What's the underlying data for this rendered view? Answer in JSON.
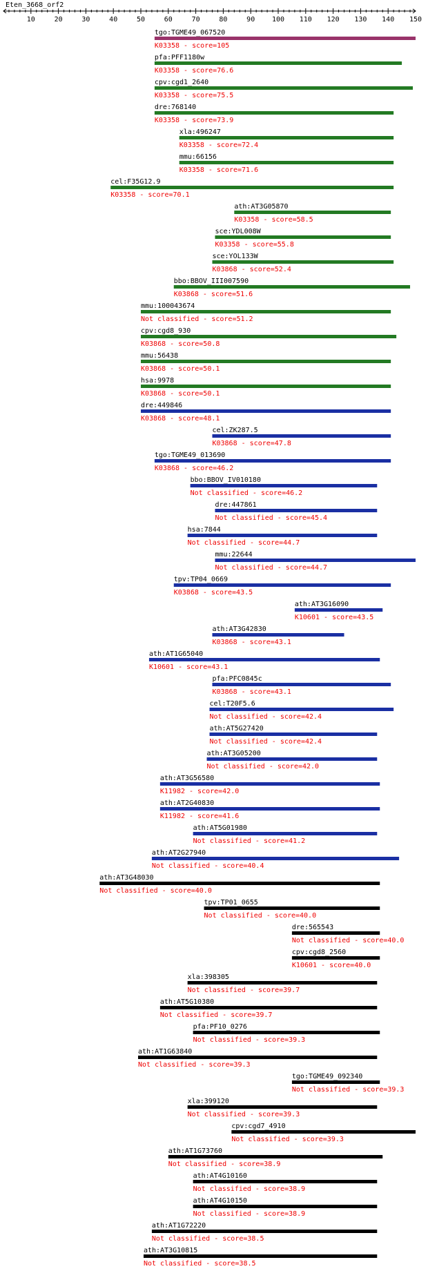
{
  "title": "Eten_3668_orf2",
  "axis": {
    "min": 0,
    "max": 150,
    "ticks": [
      10,
      20,
      30,
      40,
      50,
      60,
      70,
      80,
      90,
      100,
      110,
      120,
      130,
      140,
      150
    ]
  },
  "colors": {
    "magenta": "#99336a",
    "green": "#237a23",
    "blue": "#1a2fa3",
    "black": "#000000",
    "score_text": "#ee0000",
    "name_text": "#000000"
  },
  "hits": [
    {
      "name": "tgo:TGME49_067520",
      "annotation": "K03358 - score=105",
      "start": 55,
      "end": 150,
      "color": "magenta"
    },
    {
      "name": "pfa:PFF1180w",
      "annotation": "K03358 - score=76.6",
      "start": 55,
      "end": 145,
      "color": "green"
    },
    {
      "name": "cpv:cgd1_2640",
      "annotation": "K03358 - score=75.5",
      "start": 55,
      "end": 149,
      "color": "green"
    },
    {
      "name": "dre:768140",
      "annotation": "K03358 - score=73.9",
      "start": 55,
      "end": 142,
      "color": "green"
    },
    {
      "name": "xla:496247",
      "annotation": "K03358 - score=72.4",
      "start": 64,
      "end": 142,
      "color": "green"
    },
    {
      "name": "mmu:66156",
      "annotation": "K03358 - score=71.6",
      "start": 64,
      "end": 142,
      "color": "green"
    },
    {
      "name": "cel:F35G12.9",
      "annotation": "K03358 - score=70.1",
      "start": 39,
      "end": 142,
      "color": "green"
    },
    {
      "name": "ath:AT3G05870",
      "annotation": "K03358 - score=58.5",
      "start": 84,
      "end": 141,
      "color": "green"
    },
    {
      "name": "sce:YDL008W",
      "annotation": "K03358 - score=55.8",
      "start": 77,
      "end": 141,
      "color": "green"
    },
    {
      "name": "sce:YOL133W",
      "annotation": "K03868 - score=52.4",
      "start": 76,
      "end": 142,
      "color": "green"
    },
    {
      "name": "bbo:BBOV_III007590",
      "annotation": "K03868 - score=51.6",
      "start": 62,
      "end": 148,
      "color": "green"
    },
    {
      "name": "mmu:100043674",
      "annotation": "Not classified - score=51.2",
      "start": 50,
      "end": 141,
      "color": "green"
    },
    {
      "name": "cpv:cgd8_930",
      "annotation": "K03868 - score=50.8",
      "start": 50,
      "end": 143,
      "color": "green"
    },
    {
      "name": "mmu:56438",
      "annotation": "K03868 - score=50.1",
      "start": 50,
      "end": 141,
      "color": "green"
    },
    {
      "name": "hsa:9978",
      "annotation": "K03868 - score=50.1",
      "start": 50,
      "end": 141,
      "color": "green"
    },
    {
      "name": "dre:449846",
      "annotation": "K03868 - score=48.1",
      "start": 50,
      "end": 141,
      "color": "blue"
    },
    {
      "name": "cel:ZK287.5",
      "annotation": "K03868 - score=47.8",
      "start": 76,
      "end": 141,
      "color": "blue"
    },
    {
      "name": "tgo:TGME49_013690",
      "annotation": "K03868 - score=46.2",
      "start": 55,
      "end": 141,
      "color": "blue"
    },
    {
      "name": "bbo:BBOV_IV010180",
      "annotation": "Not classified - score=46.2",
      "start": 68,
      "end": 136,
      "color": "blue"
    },
    {
      "name": "dre:447861",
      "annotation": "Not classified - score=45.4",
      "start": 77,
      "end": 136,
      "color": "blue"
    },
    {
      "name": "hsa:7844",
      "annotation": "Not classified - score=44.7",
      "start": 67,
      "end": 136,
      "color": "blue"
    },
    {
      "name": "mmu:22644",
      "annotation": "Not classified - score=44.7",
      "start": 77,
      "end": 150,
      "color": "blue"
    },
    {
      "name": "tpv:TP04_0669",
      "annotation": "K03868 - score=43.5",
      "start": 62,
      "end": 141,
      "color": "blue"
    },
    {
      "name": "ath:AT3G16090",
      "annotation": "K10601 - score=43.5",
      "start": 106,
      "end": 138,
      "color": "blue"
    },
    {
      "name": "ath:AT3G42830",
      "annotation": "K03868 - score=43.1",
      "start": 76,
      "end": 124,
      "color": "blue"
    },
    {
      "name": "ath:AT1G65040",
      "annotation": "K10601 - score=43.1",
      "start": 53,
      "end": 137,
      "color": "blue"
    },
    {
      "name": "pfa:PFC0845c",
      "annotation": "K03868 - score=43.1",
      "start": 76,
      "end": 141,
      "color": "blue"
    },
    {
      "name": "cel:T20F5.6",
      "annotation": "Not classified - score=42.4",
      "start": 75,
      "end": 142,
      "color": "blue"
    },
    {
      "name": "ath:AT5G27420",
      "annotation": "Not classified - score=42.4",
      "start": 75,
      "end": 136,
      "color": "blue"
    },
    {
      "name": "ath:AT3G05200",
      "annotation": "Not classified - score=42.0",
      "start": 74,
      "end": 136,
      "color": "blue"
    },
    {
      "name": "ath:AT3G56580",
      "annotation": "K11982 - score=42.0",
      "start": 57,
      "end": 137,
      "color": "blue"
    },
    {
      "name": "ath:AT2G40830",
      "annotation": "K11982 - score=41.6",
      "start": 57,
      "end": 137,
      "color": "blue"
    },
    {
      "name": "ath:AT5G01980",
      "annotation": "Not classified - score=41.2",
      "start": 69,
      "end": 136,
      "color": "blue"
    },
    {
      "name": "ath:AT2G27940",
      "annotation": "Not classified - score=40.4",
      "start": 54,
      "end": 144,
      "color": "blue"
    },
    {
      "name": "ath:AT3G48030",
      "annotation": "Not classified - score=40.0",
      "start": 35,
      "end": 137,
      "color": "black"
    },
    {
      "name": "tpv:TP01_0655",
      "annotation": "Not classified - score=40.0",
      "start": 73,
      "end": 137,
      "color": "black"
    },
    {
      "name": "dre:565543",
      "annotation": "Not classified - score=40.0",
      "start": 105,
      "end": 137,
      "color": "black"
    },
    {
      "name": "cpv:cgd8_2560",
      "annotation": "K10601 - score=40.0",
      "start": 105,
      "end": 137,
      "color": "black"
    },
    {
      "name": "xla:398305",
      "annotation": "Not classified - score=39.7",
      "start": 67,
      "end": 136,
      "color": "black"
    },
    {
      "name": "ath:AT5G10380",
      "annotation": "Not classified - score=39.7",
      "start": 57,
      "end": 136,
      "color": "black"
    },
    {
      "name": "pfa:PF10_0276",
      "annotation": "Not classified - score=39.3",
      "start": 69,
      "end": 137,
      "color": "black"
    },
    {
      "name": "ath:AT1G63840",
      "annotation": "Not classified - score=39.3",
      "start": 49,
      "end": 136,
      "color": "black"
    },
    {
      "name": "tgo:TGME49_092340",
      "annotation": "Not classified - score=39.3",
      "start": 105,
      "end": 137,
      "color": "black"
    },
    {
      "name": "xla:399120",
      "annotation": "Not classified - score=39.3",
      "start": 67,
      "end": 136,
      "color": "black"
    },
    {
      "name": "cpv:cgd7_4910",
      "annotation": "Not classified - score=39.3",
      "start": 83,
      "end": 150,
      "color": "black"
    },
    {
      "name": "ath:AT1G73760",
      "annotation": "Not classified - score=38.9",
      "start": 60,
      "end": 138,
      "color": "black"
    },
    {
      "name": "ath:AT4G10160",
      "annotation": "Not classified - score=38.9",
      "start": 69,
      "end": 136,
      "color": "black"
    },
    {
      "name": "ath:AT4G10150",
      "annotation": "Not classified - score=38.9",
      "start": 69,
      "end": 136,
      "color": "black"
    },
    {
      "name": "ath:AT1G72220",
      "annotation": "Not classified - score=38.5",
      "start": 54,
      "end": 136,
      "color": "black"
    },
    {
      "name": "ath:AT3G10815",
      "annotation": "Not classified - score=38.5",
      "start": 51,
      "end": 136,
      "color": "black"
    }
  ]
}
